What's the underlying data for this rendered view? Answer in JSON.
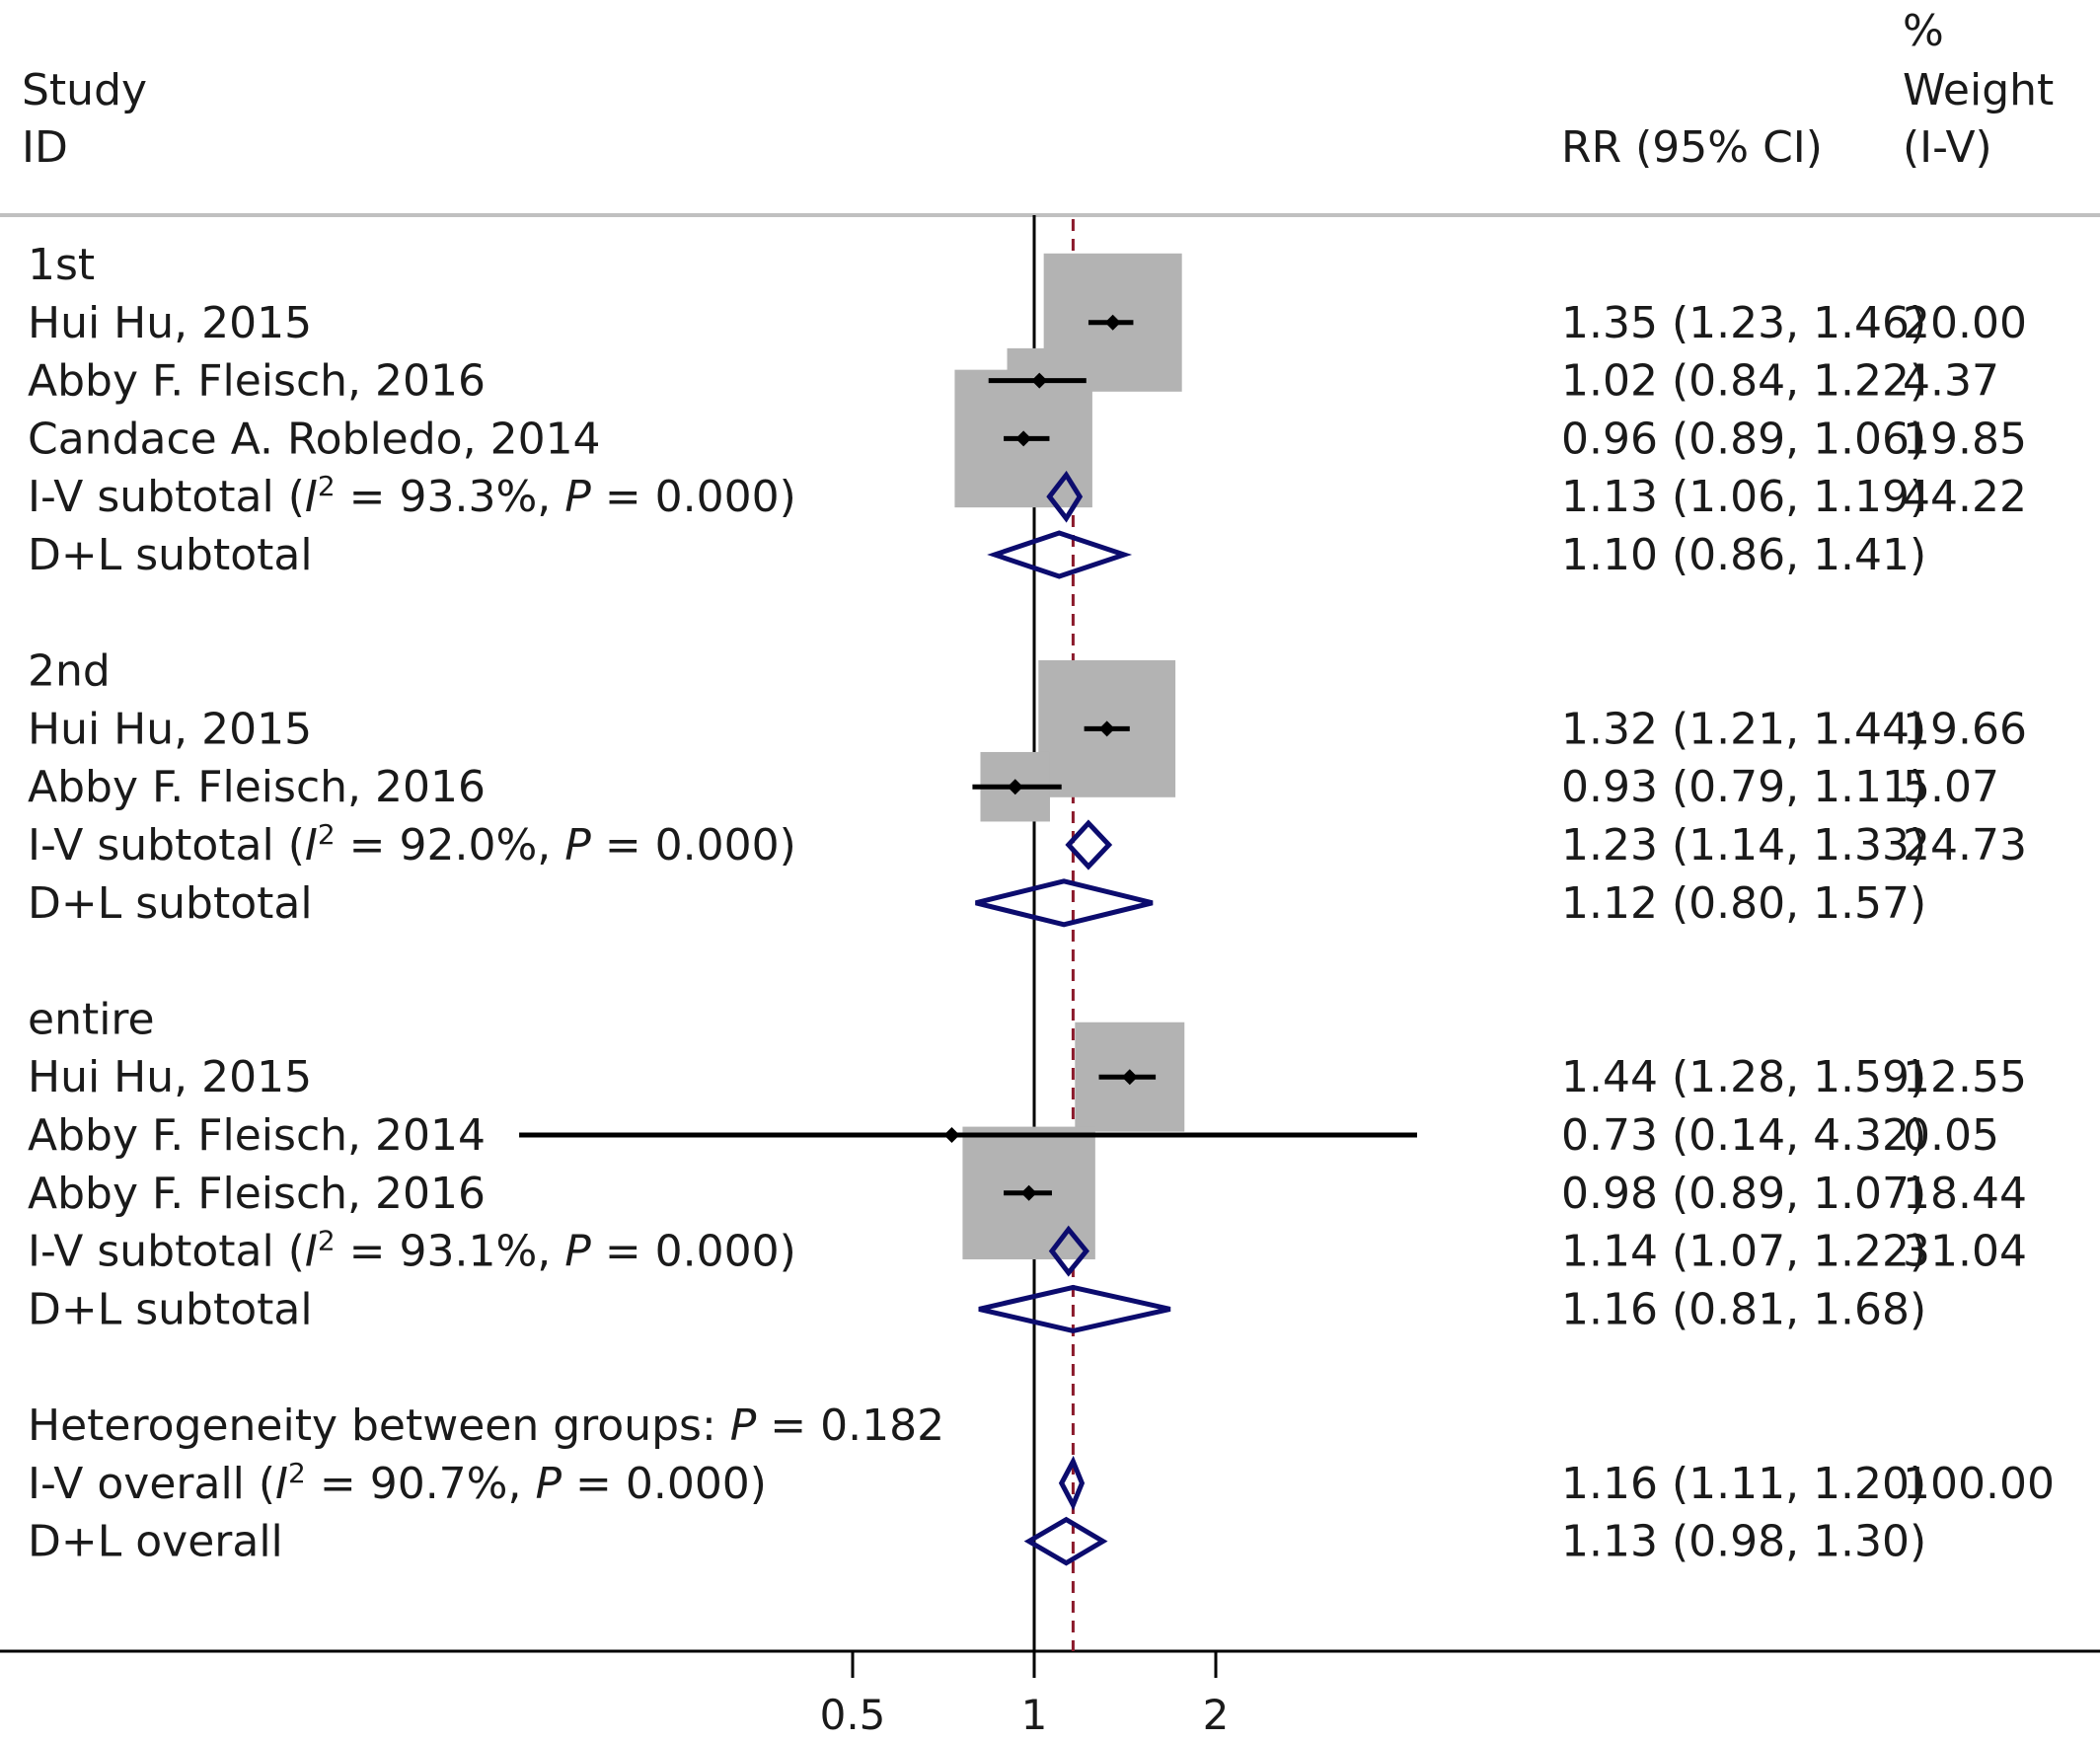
{
  "chart_data": {
    "type": "forest",
    "header": {
      "study_line1": "Study",
      "study_line2": "ID",
      "effect_label": "RR (95% CI)",
      "weight_line1": "%",
      "weight_line2": "Weight",
      "weight_line3": "(I-V)"
    },
    "x_axis": {
      "scale": "log",
      "ticks": [
        "0.5",
        "1",
        "2"
      ],
      "tick_values": [
        0.5,
        1,
        2
      ],
      "null_line": 1,
      "overall_line": 1.16
    },
    "rows": [
      {
        "kind": "group",
        "label": "1st"
      },
      {
        "kind": "study",
        "label": "Hui Hu, 2015",
        "est": 1.35,
        "lo": 1.23,
        "hi": 1.46,
        "weight": 20.0,
        "effect_text": "1.35 (1.23, 1.46)",
        "weight_text": "20.00"
      },
      {
        "kind": "study",
        "label": "Abby F. Fleisch, 2016",
        "est": 1.02,
        "lo": 0.84,
        "hi": 1.22,
        "weight": 4.37,
        "effect_text": "1.02 (0.84, 1.22)",
        "weight_text": "4.37"
      },
      {
        "kind": "study",
        "label": "Candace A. Robledo, 2014",
        "est": 0.96,
        "lo": 0.89,
        "hi": 1.06,
        "weight": 19.85,
        "effect_text": "0.96 (0.89, 1.06)",
        "weight_text": "19.85"
      },
      {
        "kind": "iv",
        "label_prefix": "I-V subtotal",
        "het_i2": "93.3%",
        "het_p": "0.000",
        "est": 1.13,
        "lo": 1.06,
        "hi": 1.19,
        "effect_text": "1.13 (1.06, 1.19)",
        "weight_text": "44.22"
      },
      {
        "kind": "dl",
        "label": "D+L subtotal",
        "est": 1.1,
        "lo": 0.86,
        "hi": 1.41,
        "effect_text": "1.10 (0.86, 1.41)",
        "weight_text": ""
      },
      {
        "kind": "blank"
      },
      {
        "kind": "group",
        "label": "2nd"
      },
      {
        "kind": "study",
        "label": "Hui Hu, 2015",
        "est": 1.32,
        "lo": 1.21,
        "hi": 1.44,
        "weight": 19.66,
        "effect_text": "1.32 (1.21, 1.44)",
        "weight_text": "19.66"
      },
      {
        "kind": "study",
        "label": "Abby F. Fleisch, 2016",
        "est": 0.93,
        "lo": 0.79,
        "hi": 1.11,
        "weight": 5.07,
        "effect_text": "0.93 (0.79, 1.11)",
        "weight_text": "5.07"
      },
      {
        "kind": "iv",
        "label_prefix": "I-V subtotal",
        "het_i2": "92.0%",
        "het_p": "0.000",
        "est": 1.23,
        "lo": 1.14,
        "hi": 1.33,
        "effect_text": "1.23 (1.14, 1.33)",
        "weight_text": "24.73"
      },
      {
        "kind": "dl",
        "label": "D+L subtotal",
        "est": 1.12,
        "lo": 0.8,
        "hi": 1.57,
        "effect_text": "1.12 (0.80, 1.57)",
        "weight_text": ""
      },
      {
        "kind": "blank"
      },
      {
        "kind": "group",
        "label": "entire"
      },
      {
        "kind": "study",
        "label": "Hui Hu, 2015",
        "est": 1.44,
        "lo": 1.28,
        "hi": 1.59,
        "weight": 12.55,
        "effect_text": "1.44 (1.28, 1.59)",
        "weight_text": "12.55"
      },
      {
        "kind": "study",
        "label": "Abby F. Fleisch, 2014",
        "est": 0.73,
        "lo": 0.14,
        "hi": 4.32,
        "weight": 0.05,
        "effect_text": "0.73 (0.14, 4.32)",
        "weight_text": "0.05"
      },
      {
        "kind": "study",
        "label": "Abby F. Fleisch, 2016",
        "est": 0.98,
        "lo": 0.89,
        "hi": 1.07,
        "weight": 18.44,
        "effect_text": "0.98 (0.89, 1.07)",
        "weight_text": "18.44"
      },
      {
        "kind": "iv",
        "label_prefix": "I-V subtotal",
        "het_i2": "93.1%",
        "het_p": "0.000",
        "est": 1.14,
        "lo": 1.07,
        "hi": 1.22,
        "effect_text": "1.14 (1.07, 1.22)",
        "weight_text": "31.04"
      },
      {
        "kind": "dl",
        "label": "D+L subtotal",
        "est": 1.16,
        "lo": 0.81,
        "hi": 1.68,
        "effect_text": "1.16 (0.81, 1.68)",
        "weight_text": ""
      },
      {
        "kind": "blank"
      },
      {
        "kind": "het",
        "label_prefix": "Heterogeneity between groups: ",
        "het_p": "0.182"
      },
      {
        "kind": "iv",
        "label_prefix": "I-V overall",
        "het_i2": "90.7%",
        "het_p": "0.000",
        "est": 1.16,
        "lo": 1.11,
        "hi": 1.2,
        "effect_text": "1.16 (1.11, 1.20)",
        "weight_text": "100.00"
      },
      {
        "kind": "dl",
        "label": "D+L overall",
        "est": 1.13,
        "lo": 0.98,
        "hi": 1.3,
        "effect_text": "1.13 (0.98, 1.30)",
        "weight_text": ""
      }
    ],
    "colors": {
      "weight_box": "#b3b3b3",
      "diamond": "#0c0c6e",
      "overall_line": "#8b1a2b",
      "line": "#000000",
      "header_rule": "#c0c0c0"
    }
  }
}
